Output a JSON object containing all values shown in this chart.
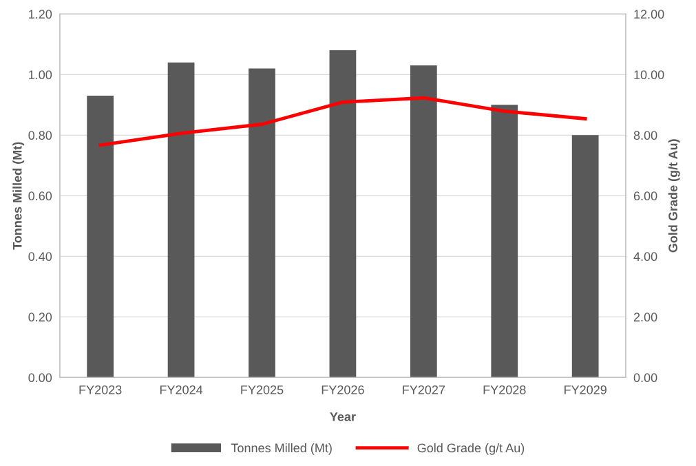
{
  "chart_data": {
    "type": "bar",
    "xlabel": "Year",
    "ylabel": "Tonnes Milled (Mt)",
    "y2label": "Gold Grade (g/t Au)",
    "categories": [
      "FY2023",
      "FY2024",
      "FY2025",
      "FY2026",
      "FY2027",
      "FY2028",
      "FY2029"
    ],
    "series": [
      {
        "name": "Tonnes Milled (Mt)",
        "color": "#595959",
        "values": [
          0.93,
          1.04,
          1.02,
          1.08,
          1.03,
          0.9,
          0.8
        ]
      },
      {
        "name": "Gold Grade (g/t Au)",
        "type": "line",
        "axis": "y2",
        "color": "#ff0000",
        "values": [
          7.67,
          8.06,
          8.36,
          9.09,
          9.23,
          8.79,
          8.54
        ]
      }
    ],
    "ylim": [
      0,
      1.2
    ],
    "yticks": [
      {
        "value": 0,
        "label": "0.00"
      },
      {
        "value": 0.2,
        "label": "0.20"
      },
      {
        "value": 0.4,
        "label": "0.40"
      },
      {
        "value": 0.6,
        "label": "0.60"
      },
      {
        "value": 0.8,
        "label": "0.80"
      },
      {
        "value": 1.0,
        "label": "1.00"
      },
      {
        "value": 1.2,
        "label": "1.20"
      }
    ],
    "y2lim": [
      0,
      12
    ],
    "y2ticks": [
      {
        "value": 0,
        "label": "0.00"
      },
      {
        "value": 2,
        "label": "2.00"
      },
      {
        "value": 4,
        "label": "4.00"
      },
      {
        "value": 6,
        "label": "6.00"
      },
      {
        "value": 8,
        "label": "8.00"
      },
      {
        "value": 10,
        "label": "10.00"
      },
      {
        "value": 12,
        "label": "12.00"
      }
    ],
    "grid": "y",
    "legend": "bottom",
    "marker": "none",
    "line_style": "solid"
  }
}
